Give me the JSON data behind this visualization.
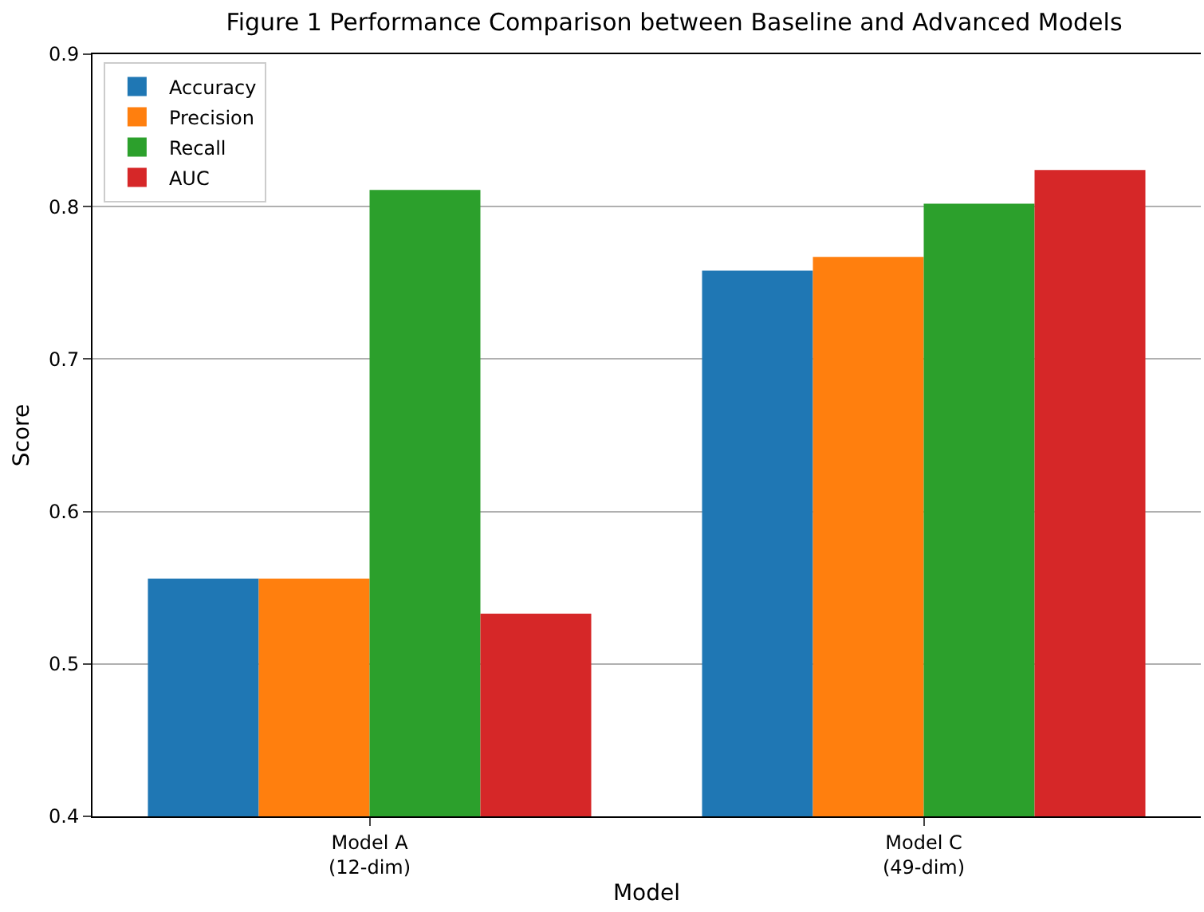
{
  "chart_data": {
    "type": "bar",
    "title": "Figure 1 Performance Comparison between Baseline and Advanced Models",
    "xlabel": "Model",
    "ylabel": "Score",
    "categories": [
      "Model A\n(12-dim)",
      "Model C\n(49-dim)"
    ],
    "series": [
      {
        "name": "Accuracy",
        "color": "#1f77b4",
        "values": [
          0.556,
          0.758
        ]
      },
      {
        "name": "Precision",
        "color": "#ff7f0e",
        "values": [
          0.556,
          0.767
        ]
      },
      {
        "name": "Recall",
        "color": "#2ca02c",
        "values": [
          0.811,
          0.802
        ]
      },
      {
        "name": "AUC",
        "color": "#d62728",
        "values": [
          0.533,
          0.824
        ]
      }
    ],
    "ylim": [
      0.4,
      0.9
    ],
    "yticks": [
      0.4,
      0.5,
      0.6,
      0.7,
      0.8,
      0.9
    ],
    "grid": "y",
    "legend": "top left"
  }
}
